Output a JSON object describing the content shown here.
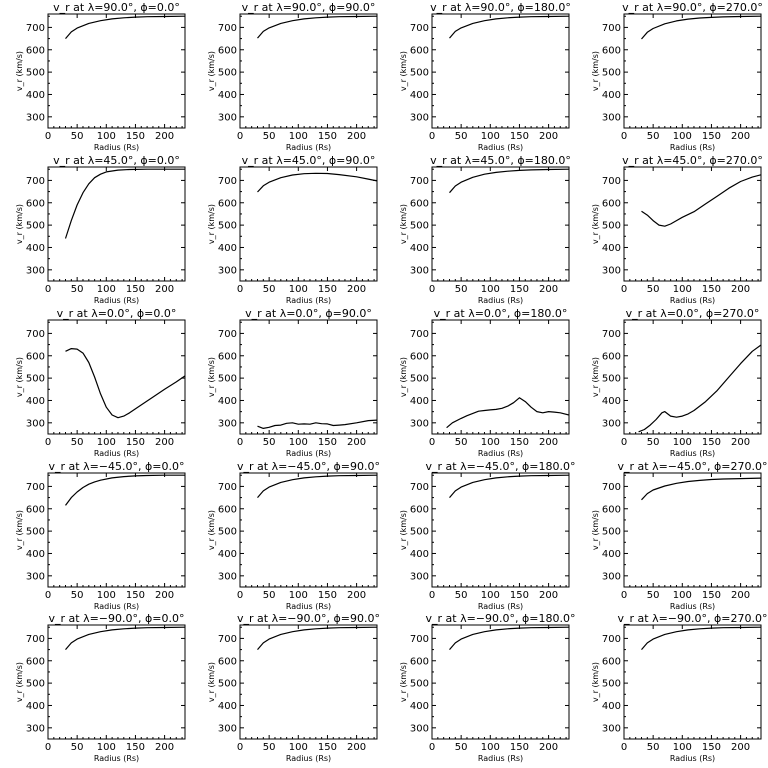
{
  "chart_data": {
    "type": "line",
    "grid_layout": {
      "rows": 5,
      "cols": 4
    },
    "xlabel": "Radius (Rs)",
    "ylabel": "v_r (km/s)",
    "xlim": [
      0,
      235
    ],
    "ylim": [
      250,
      760
    ],
    "xticks": [
      0,
      50,
      100,
      150,
      200
    ],
    "yticks": [
      300,
      400,
      500,
      600,
      700
    ],
    "grid": false,
    "panels": [
      {
        "title": "v_r at λ=90.0°, ϕ=0.0°",
        "x": [
          30,
          40,
          50,
          70,
          90,
          110,
          130,
          150,
          170,
          200,
          235
        ],
        "y": [
          650,
          680,
          697,
          718,
          730,
          738,
          743,
          746,
          748,
          749,
          750
        ]
      },
      {
        "title": "v_r at λ=90.0°, ϕ=90.0°",
        "x": [
          30,
          40,
          50,
          70,
          90,
          110,
          130,
          150,
          170,
          200,
          235
        ],
        "y": [
          652,
          682,
          698,
          718,
          730,
          738,
          743,
          746,
          748,
          749,
          750
        ]
      },
      {
        "title": "v_r at λ=90.0°, ϕ=180.0°",
        "x": [
          30,
          40,
          50,
          70,
          90,
          110,
          130,
          150,
          170,
          200,
          235
        ],
        "y": [
          652,
          682,
          698,
          718,
          730,
          738,
          743,
          746,
          748,
          749,
          750
        ]
      },
      {
        "title": "v_r at λ=90.0°, ϕ=270.0°",
        "x": [
          30,
          40,
          50,
          70,
          90,
          110,
          130,
          150,
          170,
          200,
          235
        ],
        "y": [
          648,
          678,
          695,
          716,
          729,
          737,
          742,
          745,
          747,
          749,
          750
        ]
      },
      {
        "title": "v_r at λ=45.0°, ϕ=0.0°",
        "x": [
          30,
          40,
          50,
          60,
          70,
          80,
          90,
          100,
          120,
          140,
          170,
          200,
          235
        ],
        "y": [
          440,
          520,
          590,
          645,
          685,
          712,
          728,
          738,
          746,
          749,
          750,
          750,
          750
        ]
      },
      {
        "title": "v_r at λ=45.0°, ϕ=90.0°",
        "x": [
          30,
          40,
          50,
          70,
          90,
          110,
          130,
          150,
          170,
          200,
          220,
          235
        ],
        "y": [
          648,
          676,
          692,
          712,
          724,
          730,
          732,
          731,
          726,
          716,
          706,
          698
        ]
      },
      {
        "title": "v_r at λ=45.0°, ϕ=180.0°",
        "x": [
          30,
          40,
          50,
          70,
          90,
          110,
          130,
          150,
          170,
          200,
          235
        ],
        "y": [
          645,
          675,
          692,
          714,
          728,
          736,
          741,
          745,
          747,
          749,
          750
        ]
      },
      {
        "title": "v_r at λ=45.0°, ϕ=270.0°",
        "x": [
          30,
          40,
          50,
          60,
          70,
          80,
          90,
          100,
          120,
          140,
          160,
          180,
          200,
          220,
          235
        ],
        "y": [
          562,
          545,
          520,
          500,
          495,
          505,
          520,
          535,
          560,
          595,
          630,
          665,
          695,
          715,
          725
        ]
      },
      {
        "title": "v_r at λ=0.0°, ϕ=0.0°",
        "x": [
          30,
          40,
          50,
          60,
          70,
          80,
          90,
          100,
          110,
          120,
          130,
          140,
          160,
          180,
          200,
          220,
          235
        ],
        "y": [
          620,
          632,
          630,
          612,
          570,
          505,
          430,
          370,
          335,
          323,
          330,
          345,
          380,
          415,
          450,
          483,
          510
        ]
      },
      {
        "title": "v_r at λ=0.0°, ϕ=90.0°",
        "x": [
          30,
          40,
          50,
          60,
          70,
          80,
          90,
          100,
          110,
          120,
          130,
          140,
          150,
          160,
          170,
          180,
          200,
          220,
          235
        ],
        "y": [
          285,
          275,
          280,
          288,
          290,
          298,
          300,
          294,
          295,
          294,
          300,
          296,
          295,
          288,
          290,
          292,
          300,
          310,
          312
        ]
      },
      {
        "title": "v_r at λ=0.0°, ϕ=180.0°",
        "x": [
          25,
          35,
          50,
          60,
          70,
          80,
          90,
          100,
          110,
          120,
          130,
          140,
          150,
          160,
          170,
          180,
          190,
          200,
          210,
          220,
          235
        ],
        "y": [
          278,
          300,
          320,
          332,
          342,
          352,
          355,
          358,
          360,
          365,
          375,
          390,
          412,
          395,
          370,
          350,
          345,
          350,
          348,
          345,
          335
        ]
      },
      {
        "title": "v_r at λ=0.0°, ϕ=270.0°",
        "x": [
          25,
          35,
          45,
          55,
          65,
          70,
          75,
          80,
          90,
          100,
          110,
          120,
          140,
          160,
          180,
          200,
          220,
          235
        ],
        "y": [
          260,
          270,
          290,
          315,
          345,
          350,
          340,
          330,
          325,
          330,
          340,
          355,
          395,
          445,
          505,
          565,
          620,
          648
        ]
      },
      {
        "title": "v_r at λ=−45.0°, ϕ=0.0°",
        "x": [
          30,
          40,
          50,
          60,
          70,
          80,
          90,
          110,
          130,
          150,
          170,
          200,
          235
        ],
        "y": [
          615,
          650,
          675,
          695,
          710,
          720,
          728,
          738,
          744,
          747,
          749,
          750,
          750
        ]
      },
      {
        "title": "v_r at λ=−45.0°, ϕ=90.0°",
        "x": [
          30,
          40,
          50,
          70,
          90,
          110,
          130,
          150,
          170,
          200,
          235
        ],
        "y": [
          650,
          680,
          697,
          718,
          730,
          738,
          743,
          746,
          748,
          749,
          750
        ]
      },
      {
        "title": "v_r at λ=−45.0°, ϕ=180.0°",
        "x": [
          30,
          40,
          50,
          70,
          90,
          110,
          130,
          150,
          170,
          200,
          235
        ],
        "y": [
          650,
          680,
          697,
          718,
          730,
          738,
          743,
          746,
          748,
          749,
          750
        ]
      },
      {
        "title": "v_r at λ=−45.0°, ϕ=270.0°",
        "x": [
          30,
          40,
          50,
          70,
          90,
          110,
          130,
          150,
          170,
          200,
          235
        ],
        "y": [
          640,
          668,
          684,
          702,
          714,
          722,
          727,
          731,
          733,
          735,
          737
        ]
      },
      {
        "title": "v_r at λ=−90.0°, ϕ=0.0°",
        "x": [
          30,
          40,
          50,
          70,
          90,
          110,
          130,
          150,
          170,
          200,
          235
        ],
        "y": [
          650,
          680,
          697,
          718,
          730,
          738,
          743,
          746,
          748,
          749,
          750
        ]
      },
      {
        "title": "v_r at λ=−90.0°, ϕ=90.0°",
        "x": [
          30,
          40,
          50,
          70,
          90,
          110,
          130,
          150,
          170,
          200,
          235
        ],
        "y": [
          650,
          680,
          697,
          718,
          730,
          738,
          743,
          746,
          748,
          749,
          750
        ]
      },
      {
        "title": "v_r at λ=−90.0°, ϕ=180.0°",
        "x": [
          30,
          40,
          50,
          70,
          90,
          110,
          130,
          150,
          170,
          200,
          235
        ],
        "y": [
          650,
          680,
          697,
          718,
          730,
          738,
          743,
          746,
          748,
          749,
          750
        ]
      },
      {
        "title": "v_r at λ=−90.0°, ϕ=270.0°",
        "x": [
          30,
          40,
          50,
          70,
          90,
          110,
          130,
          150,
          170,
          200,
          235
        ],
        "y": [
          650,
          680,
          697,
          718,
          730,
          738,
          743,
          746,
          748,
          749,
          750
        ]
      }
    ]
  }
}
